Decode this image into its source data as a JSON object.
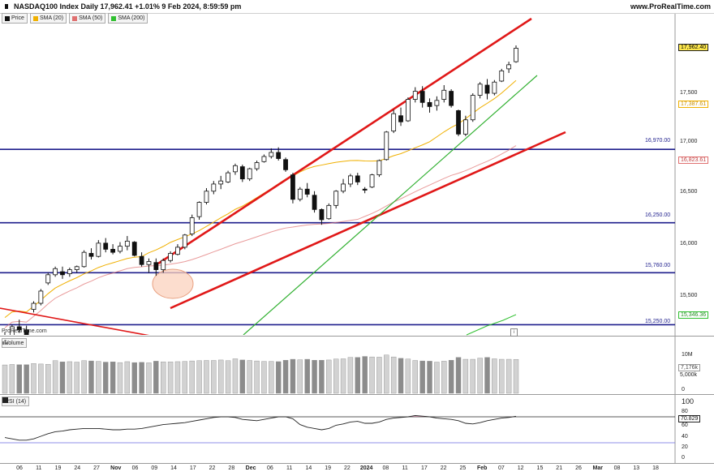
{
  "header": {
    "title": "NASDAQ100 Index Daily 17,962.41 +1.01% 9 Feb 2024, 8:59:59 pm",
    "brand": "www.ProRealTime.com"
  },
  "legend": [
    {
      "label": "Price",
      "color": "#111111"
    },
    {
      "label": "SMA (20)",
      "color": "#f0b000"
    },
    {
      "label": "SMA (50)",
      "color": "#e07070"
    },
    {
      "label": "SMA (200)",
      "color": "#30c030"
    }
  ],
  "watermark": "ProRealTime.com",
  "volume_label": "Volume",
  "rsi_label": "RSI (14)",
  "price_axis": {
    "ticks": [
      "17,500",
      "17,000",
      "16,500",
      "16,000",
      "15,500"
    ]
  },
  "levels": [
    {
      "label": "16,970.00",
      "value": 16970
    },
    {
      "label": "16,250.00",
      "value": 16250
    },
    {
      "label": "15,760.00",
      "value": 15760
    },
    {
      "label": "15,250.00",
      "value": 15250
    }
  ],
  "tags": {
    "price": "17,962.40",
    "sma20": "17,387.61",
    "sma50": "16,823.61",
    "sma200": "15,346.36",
    "volume": "7,176k",
    "rsi": "70.829"
  },
  "volume_axis": {
    "ticks": [
      "10M",
      "5,000k",
      "0"
    ]
  },
  "rsi_axis": {
    "ticks": [
      "100",
      "80",
      "60",
      "40",
      "20",
      "0"
    ]
  },
  "x_ticks": [
    {
      "label": "06",
      "bold": false
    },
    {
      "label": "11",
      "bold": false
    },
    {
      "label": "19",
      "bold": false
    },
    {
      "label": "24",
      "bold": false
    },
    {
      "label": "27",
      "bold": false
    },
    {
      "label": "Nov",
      "bold": true
    },
    {
      "label": "06",
      "bold": false
    },
    {
      "label": "09",
      "bold": false
    },
    {
      "label": "14",
      "bold": false
    },
    {
      "label": "17",
      "bold": false
    },
    {
      "label": "22",
      "bold": false
    },
    {
      "label": "28",
      "bold": false
    },
    {
      "label": "Dec",
      "bold": true
    },
    {
      "label": "06",
      "bold": false
    },
    {
      "label": "11",
      "bold": false
    },
    {
      "label": "14",
      "bold": false
    },
    {
      "label": "19",
      "bold": false
    },
    {
      "label": "22",
      "bold": false
    },
    {
      "label": "2024",
      "bold": true
    },
    {
      "label": "08",
      "bold": false
    },
    {
      "label": "11",
      "bold": false
    },
    {
      "label": "17",
      "bold": false
    },
    {
      "label": "22",
      "bold": false
    },
    {
      "label": "25",
      "bold": false
    },
    {
      "label": "Feb",
      "bold": true
    },
    {
      "label": "07",
      "bold": false
    },
    {
      "label": "12",
      "bold": false
    },
    {
      "label": "15",
      "bold": false
    },
    {
      "label": "21",
      "bold": false
    },
    {
      "label": "26",
      "bold": false
    },
    {
      "label": "Mar",
      "bold": true
    },
    {
      "label": "08",
      "bold": false
    },
    {
      "label": "13",
      "bold": false
    },
    {
      "label": "18",
      "bold": false
    }
  ],
  "chart_data": {
    "type": "candlestick",
    "title": "NASDAQ100 Index Daily",
    "last_date": "9 Feb 2024",
    "last_close": 17962.41,
    "change_pct": 1.01,
    "ylim": [
      15150,
      18300
    ],
    "candles": [
      [
        15060,
        15180,
        14990,
        15120
      ],
      [
        15120,
        15250,
        15060,
        15230
      ],
      [
        15230,
        15300,
        15170,
        15200
      ],
      [
        15200,
        15240,
        15120,
        15150
      ],
      [
        15400,
        15480,
        15370,
        15460
      ],
      [
        15460,
        15600,
        15440,
        15580
      ],
      [
        15660,
        15760,
        15640,
        15740
      ],
      [
        15740,
        15820,
        15720,
        15800
      ],
      [
        15770,
        15820,
        15700,
        15740
      ],
      [
        15750,
        15810,
        15720,
        15790
      ],
      [
        15790,
        15830,
        15760,
        15820
      ],
      [
        15820,
        15980,
        15810,
        15960
      ],
      [
        15950,
        16000,
        15890,
        15920
      ],
      [
        15920,
        16080,
        15910,
        16050
      ],
      [
        16050,
        16100,
        15960,
        15990
      ],
      [
        15990,
        16040,
        15940,
        15960
      ],
      [
        15970,
        16060,
        15950,
        16020
      ],
      [
        16020,
        16120,
        15980,
        16070
      ],
      [
        16060,
        16070,
        15920,
        15930
      ],
      [
        15920,
        15960,
        15820,
        15840
      ],
      [
        15840,
        15900,
        15760,
        15870
      ],
      [
        15860,
        15900,
        15730,
        15790
      ],
      [
        15790,
        15900,
        15760,
        15880
      ],
      [
        15880,
        15970,
        15860,
        15950
      ],
      [
        15940,
        16040,
        15930,
        16010
      ],
      [
        16010,
        16140,
        15990,
        16130
      ],
      [
        16140,
        16330,
        16120,
        16300
      ],
      [
        16310,
        16460,
        16280,
        16450
      ],
      [
        16450,
        16590,
        16430,
        16560
      ],
      [
        16560,
        16660,
        16530,
        16630
      ],
      [
        16630,
        16710,
        16580,
        16660
      ],
      [
        16650,
        16760,
        16640,
        16740
      ],
      [
        16750,
        16830,
        16720,
        16810
      ],
      [
        16800,
        16820,
        16650,
        16680
      ],
      [
        16680,
        16790,
        16660,
        16780
      ],
      [
        16780,
        16860,
        16760,
        16840
      ],
      [
        16850,
        16920,
        16840,
        16900
      ],
      [
        16900,
        16980,
        16880,
        16940
      ],
      [
        16940,
        16990,
        16860,
        16880
      ],
      [
        16870,
        16890,
        16750,
        16770
      ],
      [
        16720,
        16740,
        16440,
        16480
      ],
      [
        16480,
        16600,
        16460,
        16580
      ],
      [
        16580,
        16640,
        16500,
        16530
      ],
      [
        16520,
        16560,
        16350,
        16380
      ],
      [
        16380,
        16390,
        16230,
        16280
      ],
      [
        16290,
        16440,
        16280,
        16420
      ],
      [
        16420,
        16570,
        16390,
        16560
      ],
      [
        16560,
        16680,
        16540,
        16630
      ],
      [
        16630,
        16730,
        16600,
        16710
      ],
      [
        16710,
        16740,
        16620,
        16650
      ],
      [
        16580,
        16600,
        16540,
        16570
      ],
      [
        16600,
        16730,
        16590,
        16720
      ],
      [
        16720,
        16870,
        16700,
        16860
      ],
      [
        16870,
        17150,
        16860,
        17140
      ],
      [
        17150,
        17360,
        17130,
        17320
      ],
      [
        17300,
        17380,
        17200,
        17240
      ],
      [
        17250,
        17480,
        17240,
        17460
      ],
      [
        17460,
        17580,
        17430,
        17540
      ],
      [
        17540,
        17590,
        17380,
        17430
      ],
      [
        17430,
        17470,
        17330,
        17390
      ],
      [
        17400,
        17490,
        17350,
        17450
      ],
      [
        17460,
        17600,
        17430,
        17550
      ],
      [
        17540,
        17560,
        17380,
        17400
      ],
      [
        17350,
        17360,
        17100,
        17120
      ],
      [
        17120,
        17300,
        17100,
        17260
      ],
      [
        17260,
        17520,
        17240,
        17500
      ],
      [
        17500,
        17630,
        17470,
        17610
      ],
      [
        17600,
        17660,
        17460,
        17520
      ],
      [
        17520,
        17650,
        17500,
        17630
      ],
      [
        17640,
        17760,
        17630,
        17740
      ],
      [
        17760,
        17830,
        17720,
        17800
      ],
      [
        17830,
        17990,
        17820,
        17962
      ]
    ],
    "volume_scale": [
      0,
      11500
    ],
    "volume": [
      6000,
      6100,
      6050,
      6050,
      6300,
      6200,
      6150,
      6900,
      6650,
      6700,
      6600,
      6900,
      6850,
      6750,
      6600,
      6650,
      6500,
      6700,
      6500,
      6550,
      6450,
      6800,
      6650,
      6650,
      6700,
      6750,
      6850,
      6900,
      6950,
      6950,
      7050,
      6900,
      7300,
      7050,
      6950,
      6850,
      6750,
      6750,
      6700,
      7000,
      7200,
      7100,
      7200,
      7000,
      7000,
      7050,
      7250,
      7300,
      7600,
      7600,
      7800,
      7700,
      7650,
      8100,
      7700,
      7400,
      7250,
      6950,
      6850,
      6800,
      6600,
      6800,
      7000,
      7600,
      7200,
      7200,
      7450,
      7600,
      7300,
      7200,
      7200,
      7176
    ],
    "rsi": [
      38,
      36,
      34,
      34,
      36,
      40,
      44,
      47,
      48,
      50,
      51,
      52,
      52,
      52,
      51,
      50,
      50,
      51,
      51,
      52,
      54,
      56,
      58,
      59,
      60,
      61,
      63,
      65,
      67,
      69,
      70,
      70,
      69,
      66,
      65,
      64,
      66,
      68,
      70,
      70,
      67,
      58,
      54,
      52,
      50,
      52,
      57,
      59,
      62,
      63,
      60,
      60,
      62,
      66,
      68,
      69,
      70,
      72,
      71,
      70,
      68,
      67,
      66,
      64,
      60,
      59,
      61,
      64,
      66,
      68,
      69,
      70.8
    ]
  }
}
